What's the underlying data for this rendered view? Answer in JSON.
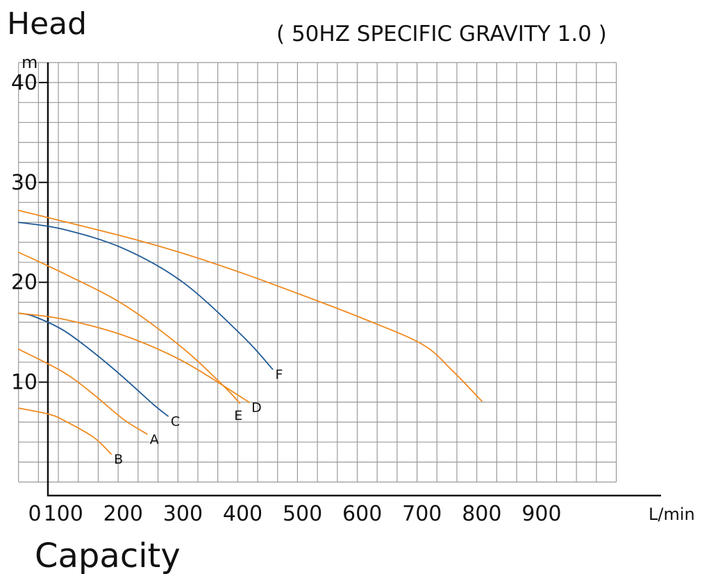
{
  "chart_data": {
    "type": "line",
    "title": "( 50HZ SPECIFIC GRAVITY 1.0 )",
    "ylabel": "Head",
    "yunit": "m",
    "xlabel": "Capacity",
    "xunit": "L/min",
    "xlim": [
      0,
      1000
    ],
    "ylim": [
      0,
      40
    ],
    "x_ticks": [
      "0",
      "100",
      "200",
      "300",
      "400",
      "500",
      "600",
      "700",
      "800",
      "900"
    ],
    "y_ticks": [
      "10",
      "20",
      "30",
      "40"
    ],
    "grid": true,
    "colors": {
      "orange": "#ef8a1f",
      "blue": "#1f5a96",
      "grid": "#9a9a9a"
    },
    "series": [
      {
        "name": "A",
        "color": "#ef8a1f",
        "x": [
          25,
          100,
          150,
          200,
          240
        ],
        "y": [
          13.3,
          11.0,
          8.8,
          6.3,
          4.8
        ]
      },
      {
        "name": "B",
        "color": "#ef8a1f",
        "x": [
          25,
          75,
          100,
          150,
          180
        ],
        "y": [
          7.4,
          6.8,
          6.2,
          4.5,
          2.8
        ]
      },
      {
        "name": "C",
        "color": "#1f5a96",
        "x": [
          25,
          50,
          100,
          150,
          200,
          250,
          275
        ],
        "y": [
          16.9,
          16.6,
          15.2,
          13.0,
          10.5,
          7.8,
          6.6
        ]
      },
      {
        "name": "D",
        "color": "#ef8a1f",
        "x": [
          25,
          100,
          200,
          300,
          400,
          410
        ],
        "y": [
          16.9,
          16.3,
          14.7,
          12.1,
          8.4,
          8.0
        ]
      },
      {
        "name": "E",
        "color": "#ef8a1f",
        "x": [
          25,
          100,
          200,
          300,
          370,
          395
        ],
        "y": [
          23.0,
          20.9,
          17.8,
          13.4,
          9.5,
          7.9
        ]
      },
      {
        "name": "F",
        "color": "#1f5a96",
        "x": [
          25,
          100,
          200,
          300,
          400,
          450
        ],
        "y": [
          26.0,
          25.3,
          23.4,
          20.0,
          14.6,
          11.3
        ]
      },
      {
        "name": "",
        "color": "#ef8a1f",
        "x": [
          25,
          200,
          300,
          400,
          500,
          600,
          700,
          750,
          800
        ],
        "y": [
          27.2,
          24.6,
          22.9,
          20.9,
          18.7,
          16.4,
          13.8,
          11.2,
          8.1
        ]
      }
    ]
  }
}
